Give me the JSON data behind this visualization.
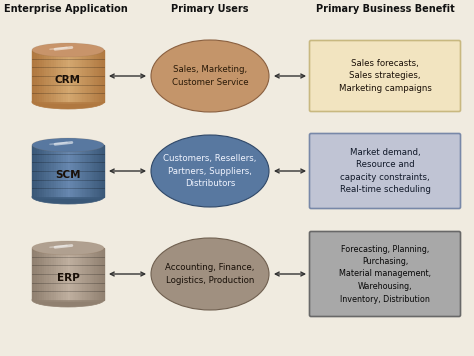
{
  "background_color": "#f0ebe0",
  "header_col1": "Enterprise Application",
  "header_col2": "Primary Users",
  "header_col3": "Primary Business Benefit",
  "rows": [
    {
      "app_label": "CRM",
      "cyl_top_color": "#c8946a",
      "cyl_body_color": "#b07840",
      "cyl_light_color": "#d4a870",
      "ellipse_color": "#c4956a",
      "ellipse_edge_color": "#8a6040",
      "ellipse_text": "Sales, Marketing,\nCustomer Service",
      "ellipse_text_color": "#2a1a08",
      "box_color": "#f2e4c0",
      "box_border": "#c8b880",
      "box_text": "Sales forecasts,\nSales strategies,\nMarketing campaigns",
      "box_text_color": "#1a1008"
    },
    {
      "app_label": "SCM",
      "cyl_top_color": "#5878a0",
      "cyl_body_color": "#3a5878",
      "cyl_light_color": "#6888b0",
      "ellipse_color": "#5878a0",
      "ellipse_edge_color": "#304868",
      "ellipse_text": "Customers, Resellers,\nPartners, Suppliers,\nDistributors",
      "ellipse_text_color": "#f0f4ff",
      "box_color": "#c0c4d4",
      "box_border": "#7888a8",
      "box_text": "Market demand,\nResource and\ncapacity constraints,\nReal-time scheduling",
      "box_text_color": "#101828"
    },
    {
      "app_label": "ERP",
      "cyl_top_color": "#b0a090",
      "cyl_body_color": "#908070",
      "cyl_light_color": "#c0b0a0",
      "ellipse_color": "#a09080",
      "ellipse_edge_color": "#706050",
      "ellipse_text": "Accounting, Finance,\nLogistics, Production",
      "ellipse_text_color": "#181008",
      "box_color": "#a8a8a8",
      "box_border": "#686868",
      "box_text": "Forecasting, Planning,\nPurchasing,\nMaterial management,\nWarehousing,\nInventory, Distribution",
      "box_text_color": "#080808"
    }
  ]
}
